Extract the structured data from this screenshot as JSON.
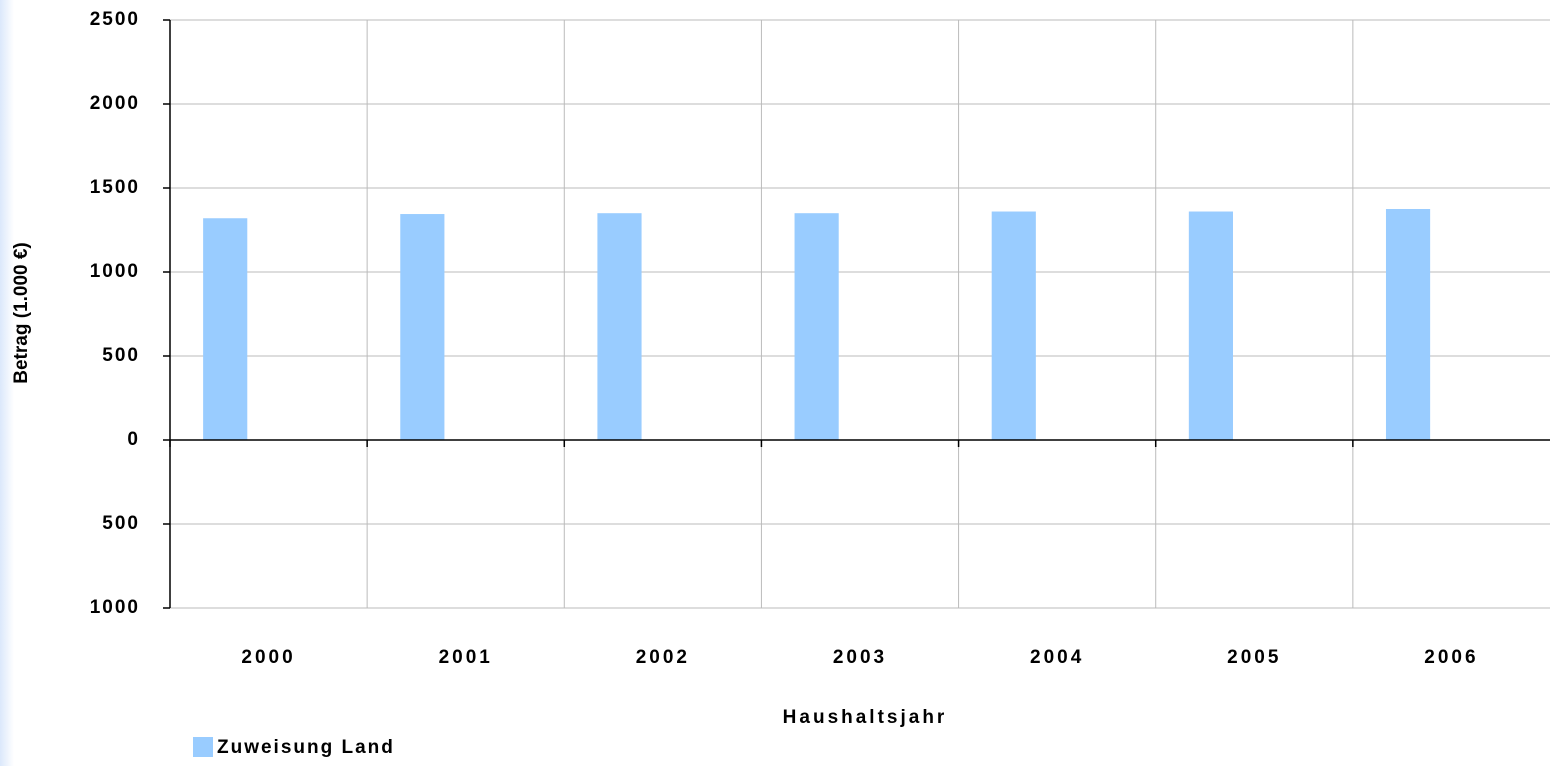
{
  "chart_data": {
    "type": "bar",
    "x_label": "Haushaltsjahr",
    "y_label": "Betrag (1.000 €)",
    "categories": [
      "2000",
      "2001",
      "2002",
      "2003",
      "2004",
      "2005",
      "2006"
    ],
    "series": [
      {
        "name": "Zuweisung Land",
        "color": "#99ccff",
        "values": [
          1320,
          1345,
          1350,
          1350,
          1360,
          1360,
          1375
        ]
      }
    ],
    "ylim": [
      -1000,
      2500
    ],
    "yticks": [
      {
        "value": -1000,
        "label": "1000"
      },
      {
        "value": -500,
        "label": "500"
      },
      0,
      500,
      1000,
      1500,
      2000,
      2500
    ],
    "grid": true,
    "legend": "bottom-left"
  }
}
